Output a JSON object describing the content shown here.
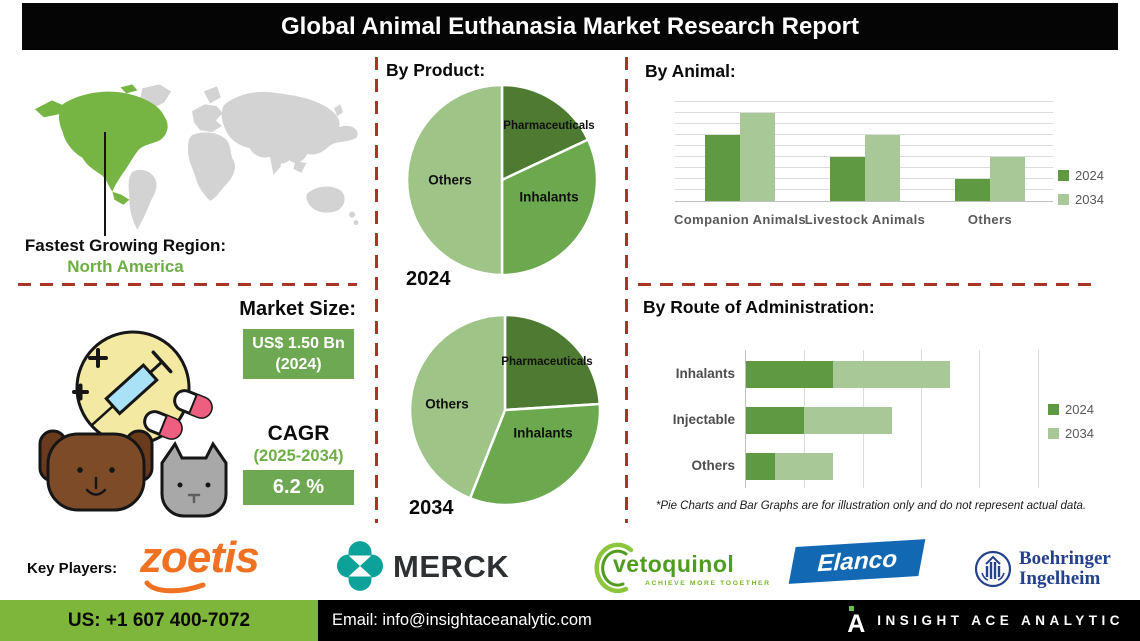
{
  "header": {
    "title": "Global Animal Euthanasia Market Research Report"
  },
  "map_section": {
    "caption": "Fastest Growing Region:",
    "region": "North America",
    "highlight_color": "#76b544",
    "land_color": "#d3d3d3"
  },
  "sections": {
    "by_product": "By Product:",
    "by_animal": "By Animal:",
    "by_route": "By Route of Administration:"
  },
  "chart_data": [
    {
      "type": "pie",
      "group": "By Product",
      "year": "2024",
      "labels": [
        "Pharmaceuticals",
        "Inhalants",
        "Others"
      ],
      "values": [
        18,
        32,
        50
      ],
      "colors": [
        "#4e7b31",
        "#6ba84e",
        "#9ec487"
      ]
    },
    {
      "type": "pie",
      "group": "By Product",
      "year": "2034",
      "labels": [
        "Pharmaceuticals",
        "Inhalants",
        "Others"
      ],
      "values": [
        24,
        32,
        44
      ],
      "colors": [
        "#4e7b31",
        "#6ba84e",
        "#9ec487"
      ]
    },
    {
      "type": "bar",
      "title": "By Animal:",
      "categories": [
        "Companion Animals",
        "Livestock Animals",
        "Others"
      ],
      "series": [
        {
          "name": "2024",
          "color": "#5f9a42",
          "values": [
            60,
            40,
            20
          ]
        },
        {
          "name": "2034",
          "color": "#a8c897",
          "values": [
            80,
            60,
            40
          ]
        }
      ],
      "ylim": [
        0,
        90
      ],
      "gridline_step": 10,
      "grid": true,
      "legend_position": "right"
    },
    {
      "type": "bar-horizontal-stacked",
      "title": "By Route of Administration:",
      "categories": [
        "Inhalants",
        "Injectable",
        "Others"
      ],
      "series": [
        {
          "name": "2024",
          "color": "#5f9a42",
          "values": [
            30,
            20,
            10
          ]
        },
        {
          "name": "2034",
          "color": "#a8c897",
          "values": [
            40,
            30,
            20
          ]
        }
      ],
      "xlim": [
        0,
        100
      ],
      "gridline_step": 20,
      "grid": true,
      "legend_position": "right"
    }
  ],
  "footnote": "*Pie Charts and Bar Graphs are for illustration only and do not represent actual data.",
  "market": {
    "label": "Market Size:",
    "value": "US$ 1.50 Bn",
    "value_year": "(2024)",
    "cagr_label": "CAGR",
    "cagr_period": "(2025-2034)",
    "cagr_value": "6.2 %",
    "box_color": "#6fa852"
  },
  "key_players": {
    "label": "Key Players:",
    "zoetis": "zoetis",
    "merck": "MERCK",
    "vetoquinol": "vetoquinol",
    "vetoquinol_tagline": "ACHIEVE MORE TOGETHER",
    "elanco": "Elanco",
    "boehringer_line1": "Boehringer",
    "boehringer_line2": "Ingelheim"
  },
  "footer": {
    "phone": "US: +1 607 400-7072",
    "email": "Email: info@insightaceanalytic.com",
    "brand": "INSIGHT ACE ANALYTIC",
    "brand_mark": "A"
  }
}
